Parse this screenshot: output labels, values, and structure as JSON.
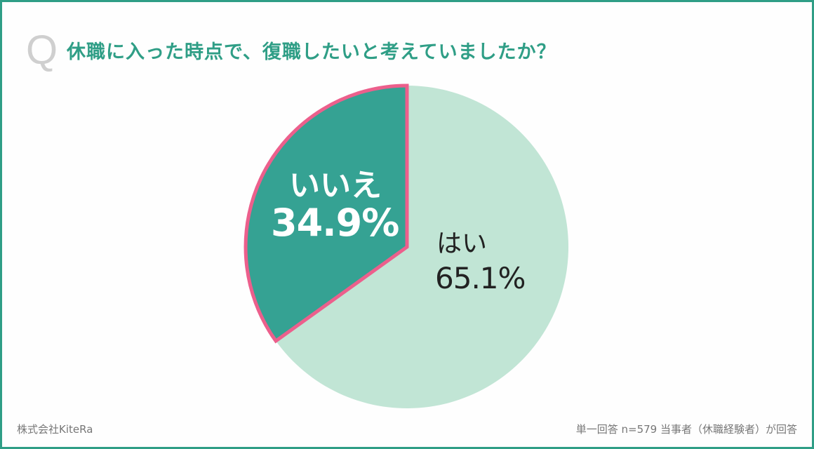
{
  "header": {
    "q_mark": "Q",
    "title": "休職に入った時点で、復職したいと考えていましたか？"
  },
  "colors": {
    "frame": "#2f9e86",
    "title": "#2f9e86",
    "yes_slice": "#c1e5d5",
    "no_slice": "#35a293",
    "highlight_stroke": "#ec5f8c",
    "q_mark": "#cfcfcf"
  },
  "chart_data": {
    "type": "pie",
    "title": "休職に入った時点で、復職したいと考えていましたか？",
    "categories": [
      "はい",
      "いいえ"
    ],
    "values": [
      65.1,
      34.9
    ],
    "unit": "%",
    "highlighted": "いいえ",
    "start_angle": "12 o'clock",
    "direction": "いいえ counter-clockwise from top; はい clockwise",
    "n": 579
  },
  "labels": {
    "yes": {
      "category": "はい",
      "value": "65.1%"
    },
    "no": {
      "category": "いいえ",
      "value": "34.9%"
    }
  },
  "footer": {
    "source": "株式会社KiteRa",
    "note": "単一回答 n=579 当事者（休職経験者）が回答"
  }
}
